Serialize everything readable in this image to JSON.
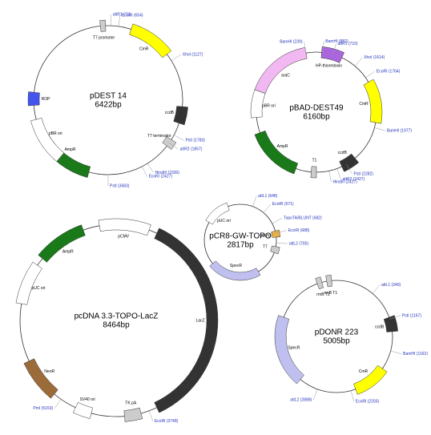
{
  "maps": [
    {
      "name": "pDEST 14",
      "size": "6422bp",
      "features": [
        "CmR",
        "ccdB",
        "AmpR",
        "ROP",
        "pBR ori",
        "T7 terminator",
        "T7 promoter"
      ],
      "sites": [
        "attR1 (71)",
        "EcoRI (654)",
        "XhoI (1127)",
        "PstI (1783)",
        "attR2 (1857)",
        "HindIII (2330)",
        "EcoRI (2427)",
        "PstI (3683)"
      ]
    },
    {
      "name": "pBAD-DEST49",
      "size": "6160bp",
      "features": [
        "araC",
        "HP-thioredoxin",
        "CmR",
        "ccdB",
        "AmpR",
        "pBR ori",
        "T1"
      ],
      "sites": [
        "BamHI (239)",
        "BamHI (882)",
        "attR1 (722)",
        "XhoI (1614)",
        "EcoRI (1764)",
        "BamHI (1977)",
        "PstI (2282)",
        "attR2 (2427)",
        "HindIII (2427)"
      ]
    },
    {
      "name": "pCR8-GW-TOPO",
      "size": "2817bp",
      "features": [
        "SpecR",
        "pUC ori",
        "TOPO",
        "T7"
      ],
      "sites": [
        "attL1 (648)",
        "EcoRI (671)",
        "TopoTA/BLUNT (682)",
        "EcoRI (688)",
        "attL2 (705)"
      ]
    },
    {
      "name": "pcDNA 3.3-TOPO-LacZ",
      "size": "8464bp",
      "features": [
        "pCMV",
        "LacZ",
        "TK pA",
        "NeoR",
        "SV40 ori",
        "AmpR",
        "pUC ori"
      ],
      "sites": [
        "EcoRI (3748)",
        "PmI (5153)"
      ]
    },
    {
      "name": "pDONR 223",
      "size": "5005bp",
      "features": [
        "SpecR",
        "ccdB",
        "CmR",
        "rrnB T2",
        "rrnB T1"
      ],
      "sites": [
        "attL1 (340)",
        "PstI (1167)",
        "BamHI (1162)",
        "EcoRI (2255)",
        "attL2 (2888)"
      ]
    }
  ]
}
